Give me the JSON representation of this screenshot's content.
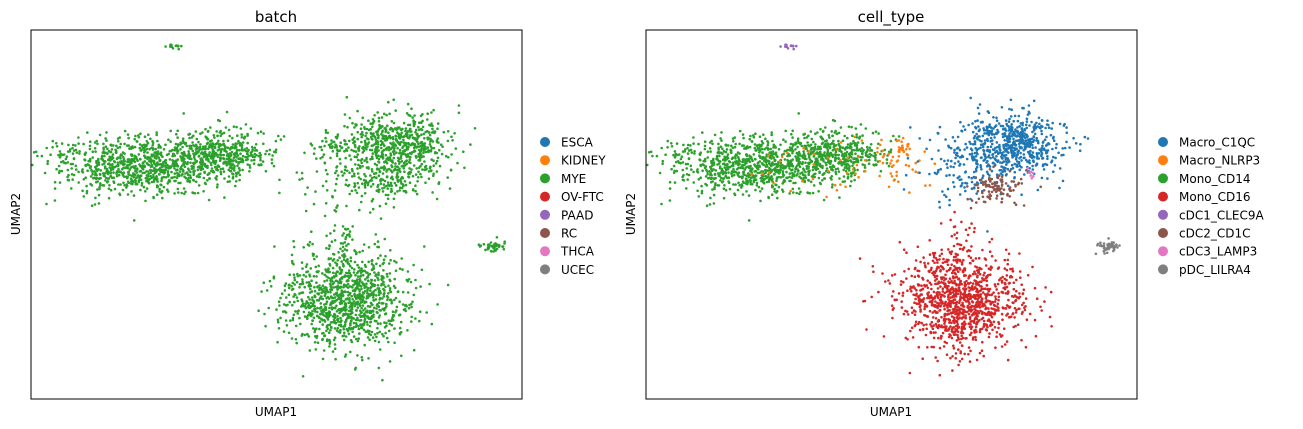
{
  "chart_data": [
    {
      "type": "scatter",
      "title": "batch",
      "xlabel": "UMAP1",
      "ylabel": "UMAP2",
      "xlim": [
        -6.0,
        16.5
      ],
      "ylim": [
        -4.2,
        9.6
      ],
      "grid": false,
      "ticks": false,
      "legend_position": "right",
      "categories": [
        {
          "name": "ESCA",
          "color": "#1f77b4"
        },
        {
          "name": "KIDNEY",
          "color": "#ff7f0e"
        },
        {
          "name": "MYE",
          "color": "#2ca02c"
        },
        {
          "name": "OV-FTC",
          "color": "#d62728"
        },
        {
          "name": "PAAD",
          "color": "#9467bd"
        },
        {
          "name": "RC",
          "color": "#8c564b"
        },
        {
          "name": "THCA",
          "color": "#e377c2"
        },
        {
          "name": "UCEC",
          "color": "#7f7f7f"
        }
      ],
      "clusters": [
        {
          "category": "MYE",
          "cx": 0.6,
          "cy": 9.0,
          "sx": 0.2,
          "sy": 0.05,
          "n": 12
        },
        {
          "category": "MYE",
          "cx": -1.0,
          "cy": 4.5,
          "sx": 1.9,
          "sy": 0.55,
          "n": 900
        },
        {
          "category": "MYE",
          "cx": 2.8,
          "cy": 5.0,
          "sx": 1.0,
          "sy": 0.5,
          "n": 400
        },
        {
          "category": "MYE",
          "cx": 8.0,
          "cy": 5.3,
          "sx": 0.35,
          "sy": 0.25,
          "n": 40
        },
        {
          "category": "MYE",
          "cx": 10.8,
          "cy": 5.3,
          "sx": 1.2,
          "sy": 0.6,
          "n": 600
        },
        {
          "category": "MYE",
          "cx": 10.2,
          "cy": 3.9,
          "sx": 0.9,
          "sy": 0.4,
          "n": 150
        },
        {
          "category": "MYE",
          "cx": 8.5,
          "cy": 4.3,
          "sx": 1.3,
          "sy": 0.8,
          "n": 80
        },
        {
          "category": "MYE",
          "cx": 8.5,
          "cy": -0.5,
          "sx": 1.4,
          "sy": 0.9,
          "n": 1100
        },
        {
          "category": "MYE",
          "cx": 8.3,
          "cy": 1.5,
          "sx": 0.3,
          "sy": 0.5,
          "n": 40
        },
        {
          "category": "MYE",
          "cx": 15.2,
          "cy": 1.5,
          "sx": 0.25,
          "sy": 0.12,
          "n": 45
        }
      ]
    },
    {
      "type": "scatter",
      "title": "cell_type",
      "xlabel": "UMAP1",
      "ylabel": "UMAP2",
      "xlim": [
        -6.0,
        16.5
      ],
      "ylim": [
        -4.2,
        9.6
      ],
      "grid": false,
      "ticks": false,
      "legend_position": "right",
      "categories": [
        {
          "name": "Macro_C1QC",
          "color": "#1f77b4"
        },
        {
          "name": "Macro_NLRP3",
          "color": "#ff7f0e"
        },
        {
          "name": "Mono_CD14",
          "color": "#2ca02c"
        },
        {
          "name": "Mono_CD16",
          "color": "#d62728"
        },
        {
          "name": "cDC1_CLEC9A",
          "color": "#9467bd"
        },
        {
          "name": "cDC2_CD1C",
          "color": "#8c564b"
        },
        {
          "name": "cDC3_LAMP3",
          "color": "#e377c2"
        },
        {
          "name": "pDC_LILRA4",
          "color": "#7f7f7f"
        }
      ],
      "clusters": [
        {
          "category": "cDC1_CLEC9A",
          "cx": 0.6,
          "cy": 9.0,
          "sx": 0.2,
          "sy": 0.05,
          "n": 12
        },
        {
          "category": "Mono_CD14",
          "cx": -1.0,
          "cy": 4.5,
          "sx": 1.9,
          "sy": 0.55,
          "n": 900
        },
        {
          "category": "Mono_CD14",
          "cx": 2.8,
          "cy": 5.0,
          "sx": 1.0,
          "sy": 0.5,
          "n": 380
        },
        {
          "category": "Macro_NLRP3",
          "cx": 2.5,
          "cy": 4.5,
          "sx": 2.2,
          "sy": 0.6,
          "n": 45
        },
        {
          "category": "Macro_NLRP3",
          "cx": 5.8,
          "cy": 5.2,
          "sx": 0.15,
          "sy": 0.15,
          "n": 25
        },
        {
          "category": "Macro_NLRP3",
          "cx": 5.5,
          "cy": 4.5,
          "sx": 0.7,
          "sy": 0.5,
          "n": 30
        },
        {
          "category": "Macro_C1QC",
          "cx": 10.8,
          "cy": 5.3,
          "sx": 1.2,
          "sy": 0.6,
          "n": 600
        },
        {
          "category": "Macro_C1QC",
          "cx": 8.5,
          "cy": 4.4,
          "sx": 1.0,
          "sy": 0.7,
          "n": 120
        },
        {
          "category": "cDC2_CD1C",
          "cx": 10.1,
          "cy": 3.7,
          "sx": 0.6,
          "sy": 0.3,
          "n": 110
        },
        {
          "category": "cDC3_LAMP3",
          "cx": 11.6,
          "cy": 4.2,
          "sx": 0.2,
          "sy": 0.15,
          "n": 8
        },
        {
          "category": "Mono_CD16",
          "cx": 8.5,
          "cy": -0.5,
          "sx": 1.4,
          "sy": 0.9,
          "n": 1100
        },
        {
          "category": "Mono_CD16",
          "cx": 8.3,
          "cy": 1.5,
          "sx": 0.3,
          "sy": 0.5,
          "n": 35
        },
        {
          "category": "pDC_LILRA4",
          "cx": 15.2,
          "cy": 1.5,
          "sx": 0.25,
          "sy": 0.12,
          "n": 45
        }
      ]
    }
  ]
}
